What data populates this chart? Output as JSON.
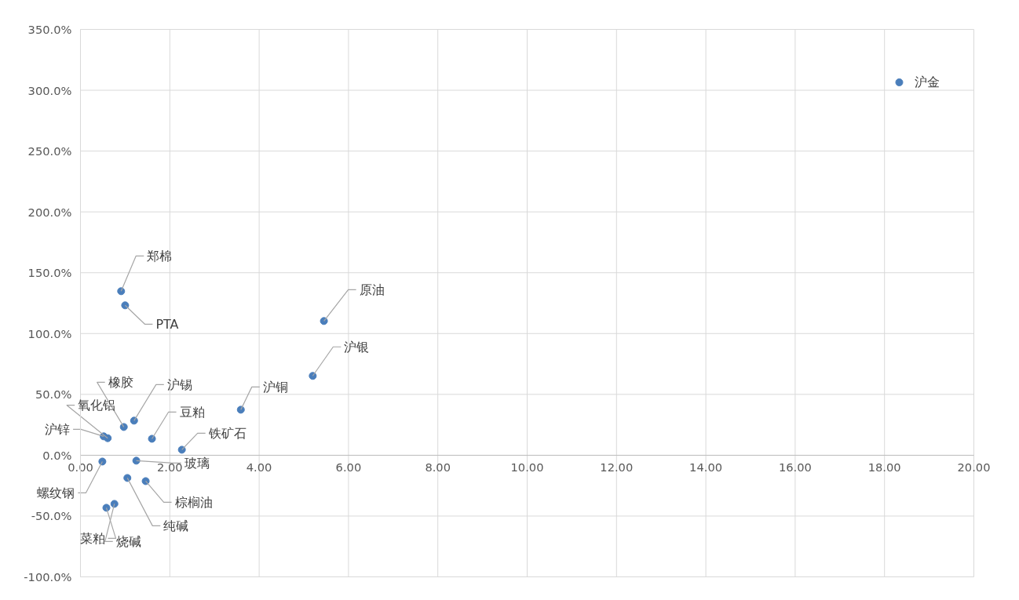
{
  "chart_data": {
    "type": "scatter",
    "marker": "circle",
    "grid": true,
    "xlim": [
      0,
      20
    ],
    "ylim": [
      -100,
      350
    ],
    "xticks": [
      {
        "value": 0,
        "label": "0.00"
      },
      {
        "value": 2,
        "label": "2.00"
      },
      {
        "value": 4,
        "label": "4.00"
      },
      {
        "value": 6,
        "label": "6.00"
      },
      {
        "value": 8,
        "label": "8.00"
      },
      {
        "value": 10,
        "label": "10.00"
      },
      {
        "value": 12,
        "label": "12.00"
      },
      {
        "value": 14,
        "label": "14.00"
      },
      {
        "value": 16,
        "label": "16.00"
      },
      {
        "value": 18,
        "label": "18.00"
      },
      {
        "value": 20,
        "label": "20.00"
      }
    ],
    "yticks": [
      {
        "value": -100,
        "label": "-100.0%"
      },
      {
        "value": -50,
        "label": "-50.0%"
      },
      {
        "value": 0,
        "label": "0.0%"
      },
      {
        "value": 50,
        "label": "50.0%"
      },
      {
        "value": 100,
        "label": "100.0%"
      },
      {
        "value": 150,
        "label": "150.0%"
      },
      {
        "value": 200,
        "label": "200.0%"
      },
      {
        "value": 250,
        "label": "250.0%"
      },
      {
        "value": 300,
        "label": "300.0%"
      },
      {
        "value": 350,
        "label": "350.0%"
      }
    ],
    "series": [
      {
        "color": "#4a7ebb",
        "x": [
          18.33,
          0.91,
          1.0,
          5.45,
          5.2,
          3.59,
          1.2,
          0.97,
          1.6,
          0.61,
          0.52,
          2.27,
          1.25,
          0.49,
          1.05,
          1.46,
          0.76,
          0.58
        ],
        "values": [
          306.5,
          134.8,
          123.2,
          110.3,
          65.2,
          37.4,
          28.4,
          23.2,
          13.5,
          14.0,
          15.5,
          4.5,
          -4.5,
          -5.2,
          -18.7,
          -21.3,
          -40,
          -43.2
        ]
      }
    ],
    "annotations": [
      {
        "text": "沪金",
        "x": 18.33,
        "y": 306.5
      },
      {
        "text": "郑棉",
        "x": 0.91,
        "y": 134.8
      },
      {
        "text": "PTA",
        "x": 1.0,
        "y": 123.2
      },
      {
        "text": "原油",
        "x": 5.45,
        "y": 110.3
      },
      {
        "text": "沪银",
        "x": 5.2,
        "y": 65.2
      },
      {
        "text": "沪铜",
        "x": 3.59,
        "y": 37.4
      },
      {
        "text": "沪锡",
        "x": 1.2,
        "y": 28.4
      },
      {
        "text": "橡胶",
        "x": 0.97,
        "y": 23.2
      },
      {
        "text": "豆粕",
        "x": 1.6,
        "y": 13.5
      },
      {
        "text": "氧化铝",
        "x": 0.61,
        "y": 14.0
      },
      {
        "text": "沪锌",
        "x": 0.52,
        "y": 15.5
      },
      {
        "text": "铁矿石",
        "x": 2.27,
        "y": 4.5
      },
      {
        "text": "玻璃",
        "x": 1.25,
        "y": -4.5
      },
      {
        "text": "螺纹钢",
        "x": 0.49,
        "y": -5.2
      },
      {
        "text": "纯碱",
        "x": 1.05,
        "y": -18.7
      },
      {
        "text": "棕榈油",
        "x": 1.46,
        "y": -21.3
      },
      {
        "text": "烧碱",
        "x": 0.76,
        "y": -40
      },
      {
        "text": "菜粕",
        "x": 0.58,
        "y": -43.2
      }
    ]
  }
}
